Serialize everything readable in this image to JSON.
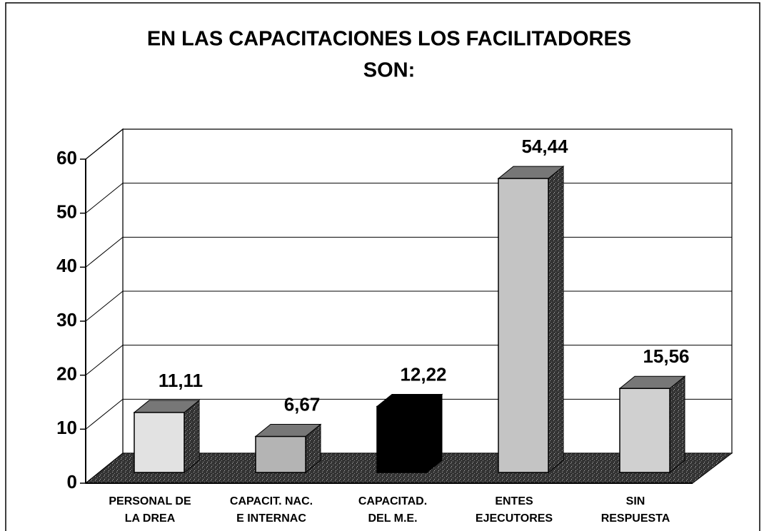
{
  "chart_data": {
    "type": "bar3d",
    "title": [
      "EN LAS CAPACITACIONES LOS FACILITADORES",
      "SON:"
    ],
    "categories": [
      [
        "PERSONAL DE",
        "LA DREA"
      ],
      [
        "CAPACIT. NAC.",
        "E INTERNAC"
      ],
      [
        "CAPACITAD.",
        "DEL M.E."
      ],
      [
        "ENTES",
        "EJECUTORES"
      ],
      [
        "SIN",
        "RESPUESTA"
      ]
    ],
    "values": [
      11.11,
      6.67,
      12.22,
      54.44,
      15.56
    ],
    "value_labels": [
      "11,11",
      "6,67",
      "12,22",
      "54,44",
      "15,56"
    ],
    "colors": [
      "#e2e2e2",
      "#b4b4b4",
      "#000000",
      "#c4c4c4",
      "#d0d0d0"
    ],
    "ylim": [
      0,
      60
    ],
    "yticks": [
      0,
      10,
      20,
      30,
      40,
      50,
      60
    ],
    "grid": true
  }
}
